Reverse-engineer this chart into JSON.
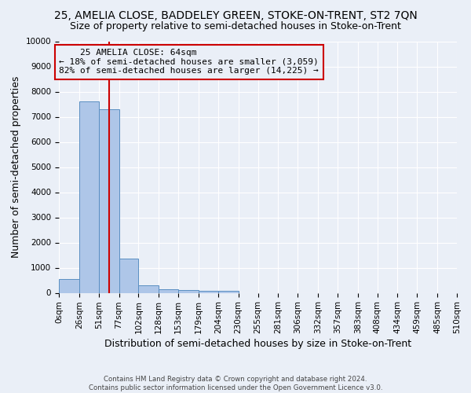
{
  "title": "25, AMELIA CLOSE, BADDELEY GREEN, STOKE-ON-TRENT, ST2 7QN",
  "subtitle": "Size of property relative to semi-detached houses in Stoke-on-Trent",
  "xlabel": "Distribution of semi-detached houses by size in Stoke-on-Trent",
  "ylabel": "Number of semi-detached properties",
  "footer_line1": "Contains HM Land Registry data © Crown copyright and database right 2024.",
  "footer_line2": "Contains public sector information licensed under the Open Government Licence v3.0.",
  "bin_edges": [
    0,
    26,
    51,
    77,
    102,
    128,
    153,
    179,
    204,
    230,
    255,
    281,
    306,
    332,
    357,
    383,
    408,
    434,
    459,
    485,
    510
  ],
  "bar_heights": [
    550,
    7600,
    7300,
    1350,
    310,
    130,
    110,
    90,
    80,
    0,
    0,
    0,
    0,
    0,
    0,
    0,
    0,
    0,
    0,
    0
  ],
  "bar_color": "#aec6e8",
  "bar_edge_color": "#5a8fc2",
  "property_size": 64,
  "property_label": "25 AMELIA CLOSE: 64sqm",
  "pct_smaller": 18,
  "pct_larger": 82,
  "n_smaller": "3,059",
  "n_larger": "14,225",
  "annotation_box_color": "#cc0000",
  "vline_color": "#cc0000",
  "ylim": [
    0,
    10000
  ],
  "yticks": [
    0,
    1000,
    2000,
    3000,
    4000,
    5000,
    6000,
    7000,
    8000,
    9000,
    10000
  ],
  "bg_color": "#eaeff7",
  "grid_color": "#ffffff",
  "title_fontsize": 10,
  "subtitle_fontsize": 9,
  "axis_label_fontsize": 9,
  "tick_fontsize": 7.5
}
